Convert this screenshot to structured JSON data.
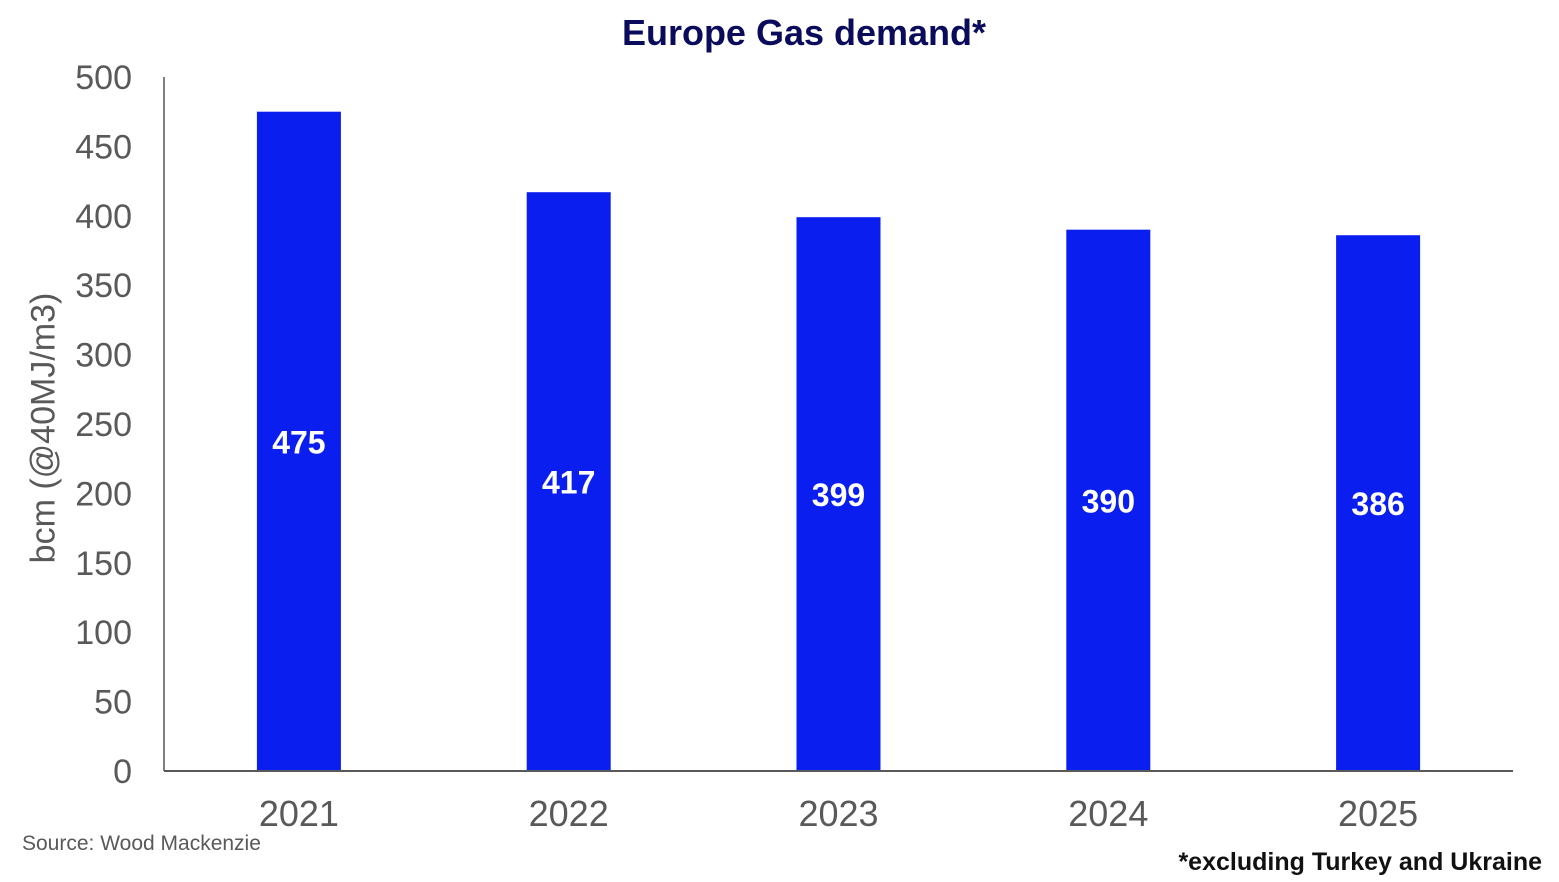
{
  "chart_data": {
    "type": "bar",
    "title": "Europe Gas demand*",
    "ylabel": "bcm (@40MJ/m3)",
    "xlabel": "",
    "categories": [
      "2021",
      "2022",
      "2023",
      "2024",
      "2025"
    ],
    "values": [
      475,
      417,
      399,
      390,
      386
    ],
    "data_labels": [
      "475",
      "417",
      "399",
      "390",
      "386"
    ],
    "ylim": [
      0,
      500
    ],
    "yticks": [
      "0",
      "50",
      "100",
      "150",
      "200",
      "250",
      "300",
      "350",
      "400",
      "450",
      "500"
    ],
    "grid": false,
    "legend": "none",
    "bar_color": "#0a1ef0",
    "data_label_color": "#ffffff",
    "source": "Source: Wood Mackenzie",
    "footnote": "*excluding Turkey and Ukraine"
  }
}
